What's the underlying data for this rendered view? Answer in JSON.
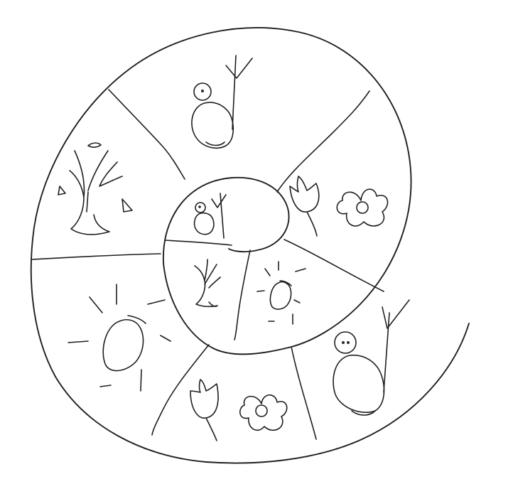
{
  "colors": {
    "background": "#ffffff",
    "ink": "#1f1f1f"
  },
  "diagram": {
    "style": "hand-drawn sketch",
    "shape": "spiral",
    "outer_ring_sections": [
      {
        "id": "sec-person",
        "icon": "person-with-branch-icon"
      },
      {
        "id": "sec-flowers",
        "icon": "tulip-and-flower-icon"
      },
      {
        "id": "sec-person-2",
        "icon": "person-with-branch-icon"
      },
      {
        "id": "sec-flowers-2",
        "icon": "tulip-and-flower-icon"
      },
      {
        "id": "sec-sun",
        "icon": "sun-icon"
      },
      {
        "id": "sec-tree",
        "icon": "tree-with-falling-leaves-icon"
      }
    ],
    "inner_ring_sections": [
      {
        "id": "inner-person",
        "icon": "person-with-branch-icon"
      },
      {
        "id": "inner-tree",
        "icon": "bare-tree-icon"
      },
      {
        "id": "inner-sun",
        "icon": "sun-icon"
      }
    ]
  }
}
